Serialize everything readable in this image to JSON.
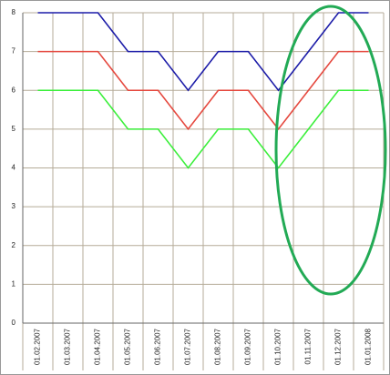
{
  "chart_data": {
    "type": "line",
    "categories": [
      "01.02.2007",
      "01.03.2007",
      "01.04.2007",
      "01.05.2007",
      "01.06.2007",
      "01.07.2007",
      "01.08.2007",
      "01.09.2007",
      "01.10.2007",
      "01.11.2007",
      "01.12.2007",
      "01.01.2008"
    ],
    "series": [
      {
        "color": "#1c1ca8",
        "values": [
          8,
          8,
          8,
          7,
          7,
          6,
          7,
          7,
          6,
          7,
          8,
          8
        ]
      },
      {
        "color": "#e5483e",
        "values": [
          7,
          7,
          7,
          6,
          6,
          5,
          6,
          6,
          5,
          6,
          7,
          7
        ]
      },
      {
        "color": "#3bef3b",
        "values": [
          6,
          6,
          6,
          5,
          5,
          4,
          5,
          5,
          4,
          5,
          6,
          6
        ]
      }
    ],
    "ylim": [
      0,
      8
    ],
    "yticks": [
      0,
      1,
      2,
      3,
      4,
      5,
      6,
      7,
      8
    ],
    "grid": true
  }
}
